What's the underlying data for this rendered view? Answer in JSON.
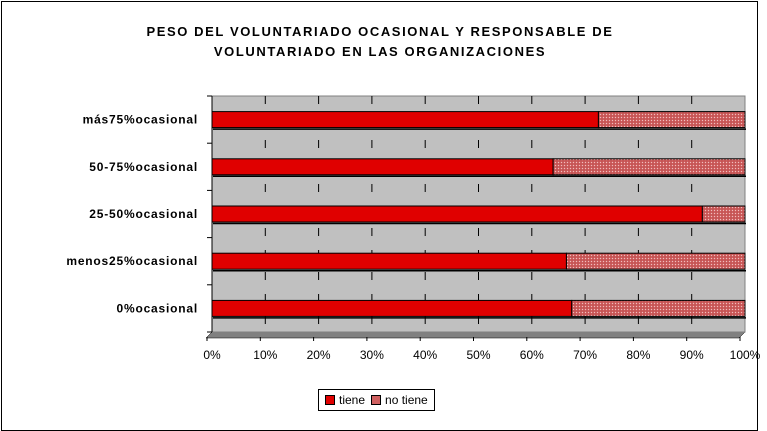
{
  "chart_data": {
    "type": "bar",
    "orientation": "horizontal",
    "stacked": true,
    "title_line1": "PESO DEL VOLUNTARIADO OCASIONAL Y RESPONSABLE DE",
    "title_line2": "VOLUNTARIADO EN LAS ORGANIZACIONES",
    "categories": [
      "más75%ocasional",
      "50-75%ocasional",
      "25-50%ocasional",
      "menos25%ocasional",
      "0%ocasional"
    ],
    "series": [
      {
        "name": "tiene",
        "values": [
          72.5,
          64,
          92,
          66.5,
          67.5
        ],
        "color": "#e00000"
      },
      {
        "name": "no tiene",
        "values": [
          27.5,
          36,
          8,
          33.5,
          32.5
        ],
        "color": "#d06060"
      }
    ],
    "xlim": [
      0,
      100
    ],
    "x_ticks": [
      "0%",
      "10%",
      "20%",
      "30%",
      "40%",
      "50%",
      "60%",
      "70%",
      "80%",
      "90%",
      "100%"
    ],
    "grid": "vertical dashed",
    "plot_background": "#c0c0c0",
    "legend_position": "bottom"
  }
}
